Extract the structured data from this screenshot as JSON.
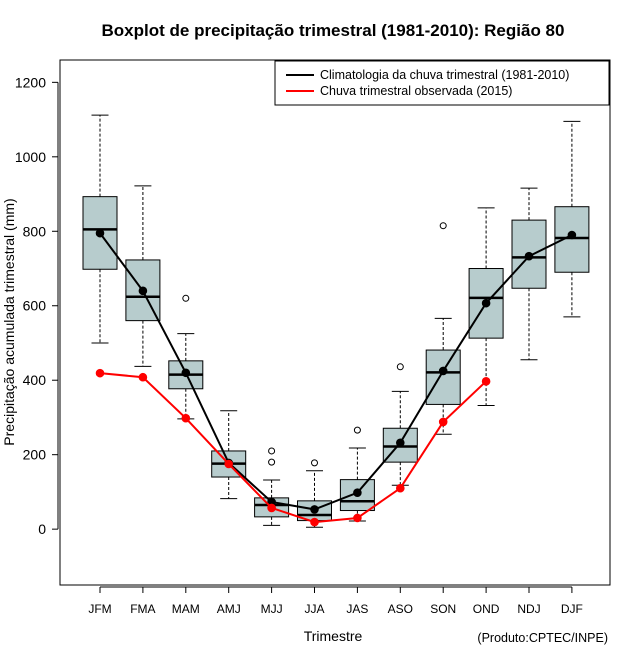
{
  "chart_data": {
    "type": "boxplot",
    "title": "Boxplot de precipitação trimestral (1981-2010): Região 80",
    "xlabel": "Trimestre",
    "ylabel": "Precipitação acumulada trimestral (mm)",
    "credit": "(Produto:CPTEC/INPE)",
    "ylim": [
      -150,
      1260
    ],
    "yticks": [
      0,
      200,
      400,
      600,
      800,
      1000,
      1200
    ],
    "legend_position": "top-right",
    "categories": [
      "JFM",
      "FMA",
      "MAM",
      "AMJ",
      "MJJ",
      "JJA",
      "JAS",
      "ASO",
      "SON",
      "OND",
      "NDJ",
      "DJF"
    ],
    "boxes": [
      {
        "whisker_low": 500,
        "q1": 698,
        "median": 805,
        "q3": 893,
        "whisker_high": 1112,
        "outliers": []
      },
      {
        "whisker_low": 437,
        "q1": 560,
        "median": 624,
        "q3": 723,
        "whisker_high": 922,
        "outliers": []
      },
      {
        "whisker_low": 296,
        "q1": 377,
        "median": 415,
        "q3": 452,
        "whisker_high": 525,
        "outliers": [
          620
        ]
      },
      {
        "whisker_low": 82,
        "q1": 140,
        "median": 176,
        "q3": 210,
        "whisker_high": 318,
        "outliers": []
      },
      {
        "whisker_low": 10,
        "q1": 33,
        "median": 65,
        "q3": 84,
        "whisker_high": 132,
        "outliers": [
          180,
          210
        ]
      },
      {
        "whisker_low": 5,
        "q1": 23,
        "median": 38,
        "q3": 76,
        "whisker_high": 157,
        "outliers": [
          178
        ]
      },
      {
        "whisker_low": 22,
        "q1": 50,
        "median": 75,
        "q3": 133,
        "whisker_high": 218,
        "outliers": [
          266
        ]
      },
      {
        "whisker_low": 118,
        "q1": 180,
        "median": 222,
        "q3": 271,
        "whisker_high": 370,
        "outliers": [
          436
        ]
      },
      {
        "whisker_low": 255,
        "q1": 335,
        "median": 421,
        "q3": 481,
        "whisker_high": 566,
        "outliers": [
          815
        ]
      },
      {
        "whisker_low": 332,
        "q1": 513,
        "median": 621,
        "q3": 700,
        "whisker_high": 863,
        "outliers": []
      },
      {
        "whisker_low": 455,
        "q1": 647,
        "median": 730,
        "q3": 830,
        "whisker_high": 916,
        "outliers": []
      },
      {
        "whisker_low": 570,
        "q1": 690,
        "median": 782,
        "q3": 866,
        "whisker_high": 1095,
        "outliers": []
      }
    ],
    "series": [
      {
        "name": "Climatologia da chuva trimestral (1981-2010)",
        "color": "#000000",
        "values": [
          795,
          640,
          420,
          178,
          73,
          53,
          98,
          232,
          425,
          607,
          733,
          790
        ]
      },
      {
        "name": "Chuva trimestral observada (2015)",
        "color": "#ff0000",
        "values": [
          419,
          408,
          298,
          175,
          57,
          19,
          30,
          110,
          288,
          397,
          null,
          null
        ]
      }
    ],
    "box_fill": "#b7cccd"
  }
}
